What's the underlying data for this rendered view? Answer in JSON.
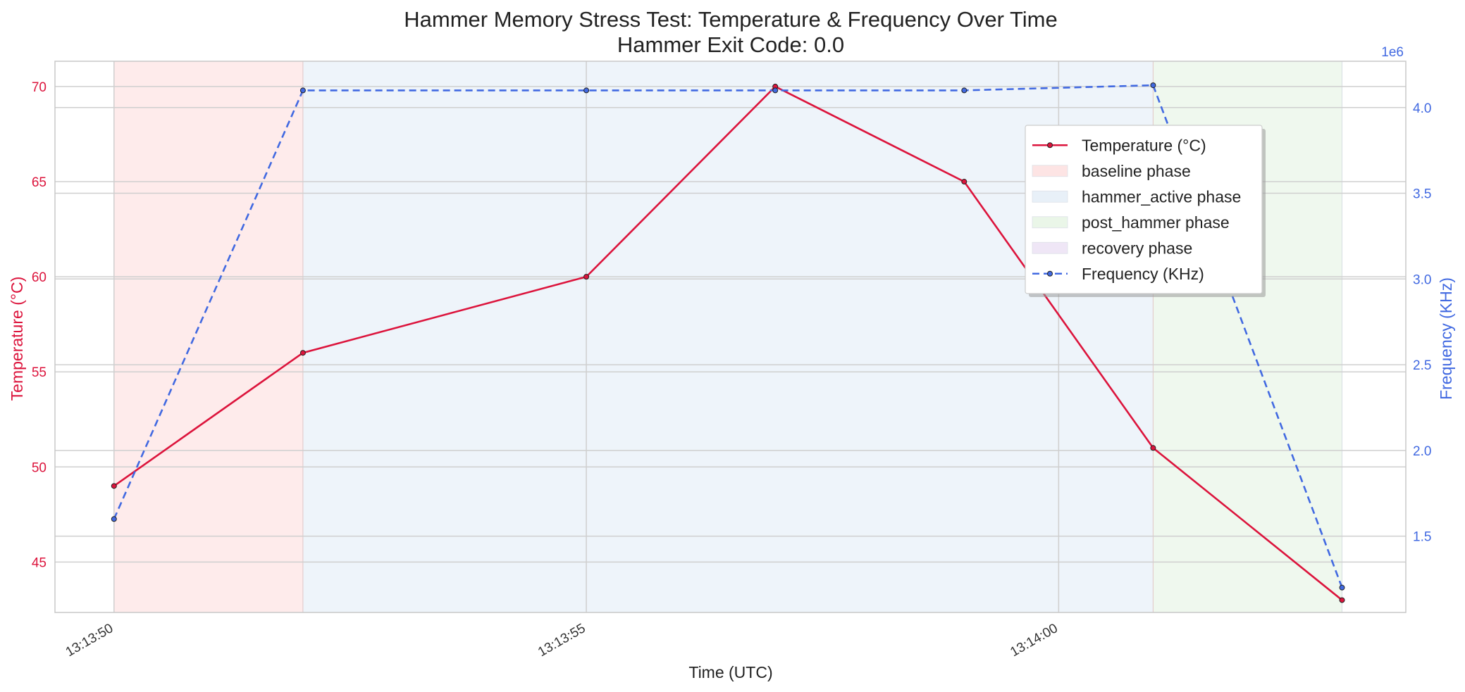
{
  "chart_data": {
    "type": "line",
    "title": "Hammer Memory Stress Test: Temperature & Frequency Over Time",
    "subtitle": "Hammer Exit Code: 0.0",
    "xlabel": "Time (UTC)",
    "ylabel_left": "Temperature (°C)",
    "ylabel_right": "Frequency (KHz)",
    "right_axis_multiplier_label": "1e6",
    "x": [
      "13:13:50",
      "13:13:52",
      "13:13:55",
      "13:13:57",
      "13:13:59",
      "13:14:01",
      "13:14:03"
    ],
    "xlim": [
      "13:13:49.375",
      "13:14:03.675"
    ],
    "x_ticks": [
      "13:13:50",
      "13:13:55",
      "13:14:00"
    ],
    "ylim_left": [
      42.35,
      71.33
    ],
    "y_ticks_left": [
      45,
      50,
      55,
      60,
      65,
      70
    ],
    "ylim_right": [
      1.055,
      4.27
    ],
    "y_ticks_right": [
      1.5,
      2.0,
      2.5,
      3.0,
      3.5,
      4.0
    ],
    "series": [
      {
        "name": "Temperature (°C)",
        "axis": "left",
        "color": "#dc143c",
        "style": "solid",
        "values": [
          49,
          56,
          60,
          70,
          65,
          51,
          43
        ]
      },
      {
        "name": "Frequency (KHz)",
        "axis": "right",
        "color": "#4169e1",
        "style": "dashed",
        "values": [
          1.6,
          4.1,
          4.1,
          4.1,
          4.1,
          4.13,
          1.2
        ]
      }
    ],
    "phases": [
      {
        "name": "baseline phase",
        "start": "13:13:50",
        "end": "13:13:52",
        "color": "#fde4e4"
      },
      {
        "name": "hammer_active phase",
        "start": "13:13:52",
        "end": "13:14:01",
        "color": "#e8f0f8"
      },
      {
        "name": "post_hammer phase",
        "start": "13:14:01",
        "end": "13:14:03",
        "color": "#eaf6e8"
      },
      {
        "name": "recovery phase",
        "start": "",
        "end": "",
        "color": "#efe6f6"
      }
    ],
    "legend_items": [
      {
        "label": "Temperature (°C)",
        "kind": "line",
        "color": "#dc143c"
      },
      {
        "label": "baseline phase",
        "kind": "patch",
        "color": "#fde4e4"
      },
      {
        "label": "hammer_active phase",
        "kind": "patch",
        "color": "#e8f0f8"
      },
      {
        "label": "post_hammer phase",
        "kind": "patch",
        "color": "#eaf6e8"
      },
      {
        "label": "recovery phase",
        "kind": "patch",
        "color": "#efe6f6"
      },
      {
        "label": "Frequency (KHz)",
        "kind": "dashed",
        "color": "#4169e1"
      }
    ],
    "legend_position": "upper-right",
    "grid": true
  }
}
